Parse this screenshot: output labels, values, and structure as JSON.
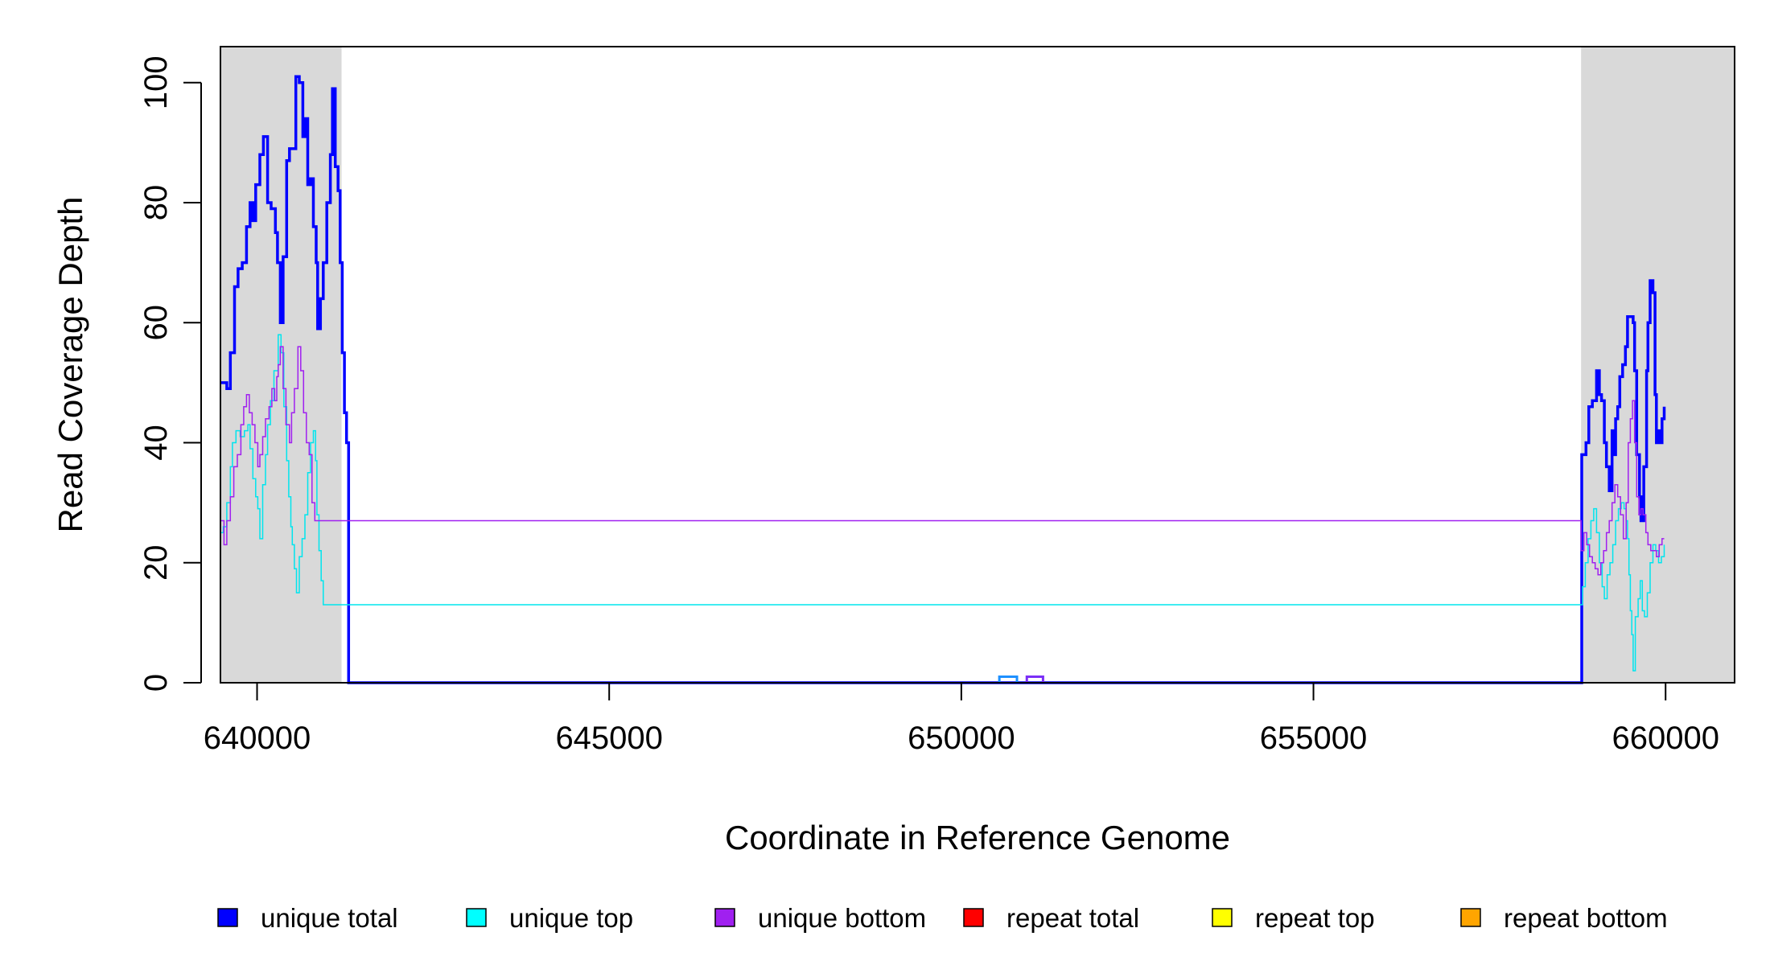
{
  "chart_data": {
    "type": "line",
    "title": "",
    "xlabel": "Coordinate in Reference Genome",
    "ylabel": "Read Coverage Depth",
    "xlim": [
      639480,
      660980
    ],
    "ylim": [
      0,
      106
    ],
    "x_ticks": [
      640000,
      645000,
      650000,
      655000,
      660000
    ],
    "x_tick_labels": [
      "640000",
      "645000",
      "650000",
      "655000",
      "660000"
    ],
    "y_ticks": [
      0,
      20,
      40,
      60,
      80,
      100
    ],
    "y_tick_labels": [
      "0",
      "20",
      "40",
      "60",
      "80",
      "100"
    ],
    "grid": false,
    "shaded_regions": [
      {
        "x": [
          639480,
          641200
        ],
        "color": "#d9d9d9"
      },
      {
        "x": [
          658800,
          660980
        ],
        "color": "#d9d9d9"
      }
    ],
    "series": [
      {
        "name": "unique total",
        "color": "#0000ff",
        "width": 3.5,
        "points": [
          [
            639480,
            50
          ],
          [
            639570,
            49
          ],
          [
            639620,
            55
          ],
          [
            639680,
            66
          ],
          [
            639730,
            69
          ],
          [
            639790,
            70
          ],
          [
            639850,
            76
          ],
          [
            639900,
            80
          ],
          [
            639940,
            77
          ],
          [
            639980,
            83
          ],
          [
            640040,
            88
          ],
          [
            640090,
            91
          ],
          [
            640150,
            80
          ],
          [
            640200,
            79
          ],
          [
            640260,
            75
          ],
          [
            640290,
            70
          ],
          [
            640330,
            60
          ],
          [
            640370,
            71
          ],
          [
            640420,
            87
          ],
          [
            640460,
            89
          ],
          [
            640510,
            89
          ],
          [
            640550,
            101
          ],
          [
            640600,
            100
          ],
          [
            640650,
            91
          ],
          [
            640680,
            94
          ],
          [
            640720,
            83
          ],
          [
            640760,
            84
          ],
          [
            640800,
            76
          ],
          [
            640840,
            70
          ],
          [
            640860,
            59
          ],
          [
            640900,
            64
          ],
          [
            640940,
            70
          ],
          [
            640990,
            80
          ],
          [
            641040,
            88
          ],
          [
            641070,
            99
          ],
          [
            641110,
            86
          ],
          [
            641150,
            82
          ],
          [
            641180,
            70
          ],
          [
            641210,
            55
          ],
          [
            641240,
            45
          ],
          [
            641270,
            40
          ],
          [
            641300,
            0
          ],
          [
            658800,
            0
          ],
          [
            658810,
            38
          ],
          [
            658870,
            40
          ],
          [
            658910,
            46
          ],
          [
            658960,
            47
          ],
          [
            659020,
            52
          ],
          [
            659060,
            48
          ],
          [
            659090,
            47
          ],
          [
            659130,
            40
          ],
          [
            659160,
            36
          ],
          [
            659200,
            32
          ],
          [
            659240,
            42
          ],
          [
            659260,
            38
          ],
          [
            659290,
            44
          ],
          [
            659320,
            46
          ],
          [
            659350,
            51
          ],
          [
            659390,
            53
          ],
          [
            659430,
            56
          ],
          [
            659460,
            61
          ],
          [
            659500,
            61
          ],
          [
            659540,
            60
          ],
          [
            659560,
            52
          ],
          [
            659590,
            38
          ],
          [
            659630,
            31
          ],
          [
            659650,
            27
          ],
          [
            659690,
            36
          ],
          [
            659730,
            52
          ],
          [
            659750,
            60
          ],
          [
            659780,
            67
          ],
          [
            659820,
            65
          ],
          [
            659850,
            48
          ],
          [
            659870,
            40
          ],
          [
            659890,
            42
          ],
          [
            659930,
            40
          ],
          [
            659950,
            44
          ],
          [
            659980,
            46
          ]
        ]
      },
      {
        "name": "unique top",
        "color": "#00e5ee",
        "width": 1.5,
        "points": [
          [
            639480,
            25
          ],
          [
            639520,
            26
          ],
          [
            639570,
            30
          ],
          [
            639620,
            36
          ],
          [
            639650,
            40
          ],
          [
            639700,
            42
          ],
          [
            639760,
            41
          ],
          [
            639820,
            42
          ],
          [
            639870,
            43
          ],
          [
            639900,
            39
          ],
          [
            639940,
            34
          ],
          [
            639980,
            31
          ],
          [
            640010,
            29
          ],
          [
            640040,
            24
          ],
          [
            640080,
            33
          ],
          [
            640120,
            38
          ],
          [
            640150,
            43
          ],
          [
            640190,
            47
          ],
          [
            640240,
            52
          ],
          [
            640300,
            58
          ],
          [
            640340,
            55
          ],
          [
            640380,
            46
          ],
          [
            640420,
            37
          ],
          [
            640450,
            31
          ],
          [
            640480,
            26
          ],
          [
            640500,
            23
          ],
          [
            640530,
            19
          ],
          [
            640560,
            15
          ],
          [
            640600,
            21
          ],
          [
            640640,
            24
          ],
          [
            640680,
            28
          ],
          [
            640720,
            35
          ],
          [
            640760,
            40
          ],
          [
            640800,
            42
          ],
          [
            640830,
            37
          ],
          [
            640850,
            28
          ],
          [
            640880,
            22
          ],
          [
            640910,
            17
          ],
          [
            640940,
            13
          ],
          [
            658800,
            13
          ],
          [
            658820,
            16
          ],
          [
            658860,
            20
          ],
          [
            658900,
            24
          ],
          [
            658940,
            27
          ],
          [
            658980,
            29
          ],
          [
            659020,
            25
          ],
          [
            659060,
            20
          ],
          [
            659100,
            16
          ],
          [
            659130,
            14
          ],
          [
            659170,
            18
          ],
          [
            659210,
            20
          ],
          [
            659250,
            23
          ],
          [
            659290,
            27
          ],
          [
            659330,
            29
          ],
          [
            659370,
            30
          ],
          [
            659410,
            29
          ],
          [
            659440,
            27
          ],
          [
            659460,
            24
          ],
          [
            659480,
            18
          ],
          [
            659500,
            12
          ],
          [
            659520,
            8
          ],
          [
            659540,
            2
          ],
          [
            659570,
            11
          ],
          [
            659610,
            14
          ],
          [
            659640,
            17
          ],
          [
            659670,
            12
          ],
          [
            659700,
            11
          ],
          [
            659740,
            15
          ],
          [
            659780,
            20
          ],
          [
            659820,
            23
          ],
          [
            659860,
            22
          ],
          [
            659900,
            20
          ],
          [
            659940,
            21
          ],
          [
            659980,
            23
          ]
        ]
      },
      {
        "name": "unique bottom",
        "color": "#a020f0",
        "width": 1.5,
        "points": [
          [
            639480,
            27
          ],
          [
            639530,
            23
          ],
          [
            639570,
            27
          ],
          [
            639620,
            31
          ],
          [
            639670,
            36
          ],
          [
            639720,
            38
          ],
          [
            639770,
            43
          ],
          [
            639810,
            46
          ],
          [
            639850,
            48
          ],
          [
            639890,
            45
          ],
          [
            639930,
            43
          ],
          [
            639970,
            40
          ],
          [
            640010,
            36
          ],
          [
            640040,
            38
          ],
          [
            640080,
            41
          ],
          [
            640120,
            44
          ],
          [
            640170,
            46
          ],
          [
            640210,
            49
          ],
          [
            640250,
            47
          ],
          [
            640280,
            51
          ],
          [
            640300,
            53
          ],
          [
            640330,
            56
          ],
          [
            640370,
            49
          ],
          [
            640410,
            43
          ],
          [
            640460,
            40
          ],
          [
            640490,
            45
          ],
          [
            640530,
            49
          ],
          [
            640580,
            56
          ],
          [
            640620,
            52
          ],
          [
            640660,
            45
          ],
          [
            640700,
            40
          ],
          [
            640740,
            38
          ],
          [
            640780,
            30
          ],
          [
            640820,
            27
          ],
          [
            658800,
            22
          ],
          [
            658840,
            25
          ],
          [
            658880,
            23
          ],
          [
            658920,
            21
          ],
          [
            658960,
            20
          ],
          [
            659000,
            19
          ],
          [
            659040,
            18
          ],
          [
            659080,
            20
          ],
          [
            659120,
            22
          ],
          [
            659160,
            25
          ],
          [
            659200,
            27
          ],
          [
            659240,
            30
          ],
          [
            659280,
            33
          ],
          [
            659320,
            31
          ],
          [
            659360,
            28
          ],
          [
            659400,
            24
          ],
          [
            659440,
            30
          ],
          [
            659470,
            40
          ],
          [
            659500,
            44
          ],
          [
            659530,
            47
          ],
          [
            659560,
            40
          ],
          [
            659590,
            31
          ],
          [
            659620,
            28
          ],
          [
            659650,
            29
          ],
          [
            659680,
            28
          ],
          [
            659720,
            25
          ],
          [
            659750,
            23
          ],
          [
            659790,
            22
          ],
          [
            659830,
            22
          ],
          [
            659870,
            21
          ],
          [
            659910,
            23
          ],
          [
            659950,
            24
          ],
          [
            659980,
            24
          ]
        ]
      },
      {
        "name": "repeat total",
        "color": "#ff0000",
        "width": 1.5,
        "points": [
          [
            639480,
            0
          ],
          [
            660980,
            0
          ]
        ]
      },
      {
        "name": "repeat top",
        "color": "#ffff00",
        "width": 1.5,
        "points": [
          [
            639480,
            0
          ],
          [
            660980,
            0
          ]
        ]
      },
      {
        "name": "repeat bottom",
        "color": "#ffa500",
        "width": 2,
        "points": [
          [
            639480,
            0
          ],
          [
            660980,
            0
          ]
        ]
      }
    ],
    "blips": [
      {
        "x": [
          650540,
          650790
        ],
        "y": 1,
        "color": "#1e90ff"
      },
      {
        "x": [
          650930,
          651160
        ],
        "y": 1,
        "color": "#7b2ff7"
      }
    ],
    "legend": {
      "placement": "bottom",
      "items": [
        {
          "label": "unique total",
          "color": "#0000ff"
        },
        {
          "label": "unique top",
          "color": "#00ffff"
        },
        {
          "label": "unique bottom",
          "color": "#a020f0"
        },
        {
          "label": "repeat total",
          "color": "#ff0000"
        },
        {
          "label": "repeat top",
          "color": "#ffff00"
        },
        {
          "label": "repeat bottom",
          "color": "#ffa500"
        }
      ]
    }
  }
}
